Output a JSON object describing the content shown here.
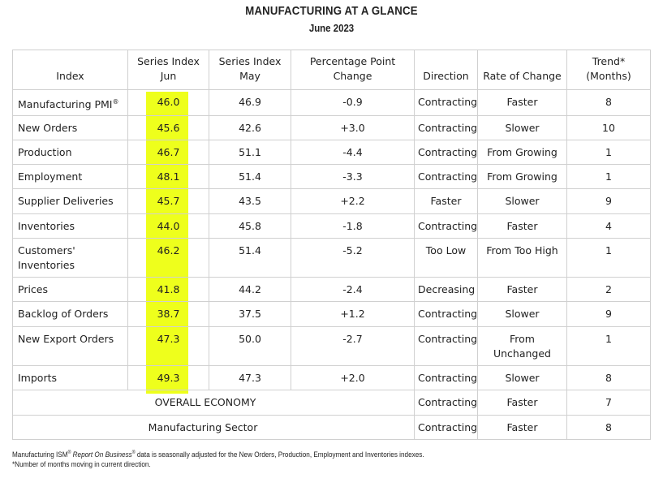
{
  "header": {
    "title": "MANUFACTURING AT A GLANCE",
    "subtitle": "June 2023"
  },
  "table": {
    "columns": [
      "Index",
      "Series Index\nJun",
      "Series Index\nMay",
      "Percentage Point\nChange",
      "Direction",
      "Rate of Change",
      "Trend*\n(Months)"
    ],
    "rows": [
      {
        "index": "Manufacturing PMI",
        "jun": "46.0",
        "may": "46.9",
        "change": "-0.9",
        "direction": "Contracting",
        "rate": "Faster",
        "trend": "8"
      },
      {
        "index": "New Orders",
        "jun": "45.6",
        "may": "42.6",
        "change": "+3.0",
        "direction": "Contracting",
        "rate": "Slower",
        "trend": "10"
      },
      {
        "index": "Production",
        "jun": "46.7",
        "may": "51.1",
        "change": "-4.4",
        "direction": "Contracting",
        "rate": "From Growing",
        "trend": "1"
      },
      {
        "index": "Employment",
        "jun": "48.1",
        "may": "51.4",
        "change": "-3.3",
        "direction": "Contracting",
        "rate": "From Growing",
        "trend": "1"
      },
      {
        "index": "Supplier Deliveries",
        "jun": "45.7",
        "may": "43.5",
        "change": "+2.2",
        "direction": "Faster",
        "rate": "Slower",
        "trend": "9"
      },
      {
        "index": "Inventories",
        "jun": "44.0",
        "may": "45.8",
        "change": "-1.8",
        "direction": "Contracting",
        "rate": "Faster",
        "trend": "4"
      },
      {
        "index": "Customers'\nInventories",
        "jun": "46.2",
        "may": "51.4",
        "change": "-5.2",
        "direction": "Too Low",
        "rate": "From Too High",
        "trend": "1"
      },
      {
        "index": "Prices",
        "jun": "41.8",
        "may": "44.2",
        "change": "-2.4",
        "direction": "Decreasing",
        "rate": "Faster",
        "trend": "2"
      },
      {
        "index": "Backlog of Orders",
        "jun": "38.7",
        "may": "37.5",
        "change": "+1.2",
        "direction": "Contracting",
        "rate": "Slower",
        "trend": "9"
      },
      {
        "index": "New Export Orders",
        "jun": "47.3",
        "may": "50.0",
        "change": "-2.7",
        "direction": "Contracting",
        "rate": "From\nUnchanged",
        "trend": "1"
      },
      {
        "index": "Imports",
        "jun": "49.3",
        "may": "47.3",
        "change": "+2.0",
        "direction": "Contracting",
        "rate": "Slower",
        "trend": "8"
      }
    ],
    "summary_rows": [
      {
        "label": "OVERALL ECONOMY",
        "direction": "Contracting",
        "rate": "Faster",
        "trend": "7"
      },
      {
        "label": "Manufacturing Sector",
        "direction": "Contracting",
        "rate": "Faster",
        "trend": "8"
      }
    ],
    "pmi_mark": "®",
    "highlight_color": "#eeff1c"
  },
  "footnotes": {
    "line1_a": "Manufacturing ISM",
    "line1_mark1": "®",
    "line1_b": "Report On Business",
    "line1_mark2": "®",
    "line1_c": " data is seasonally adjusted for the New Orders, Production, Employment and Inventories indexes.",
    "line2": "*Number of months moving in current direction."
  }
}
